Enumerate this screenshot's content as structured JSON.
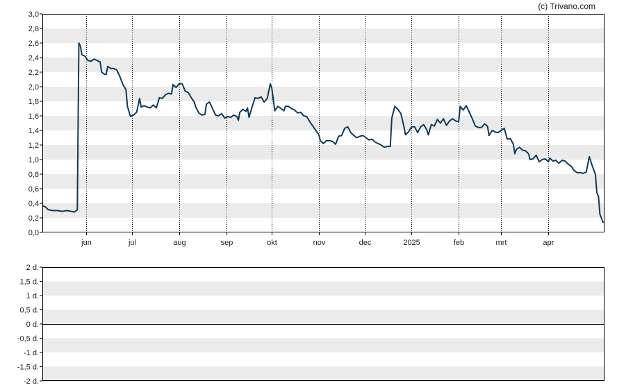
{
  "credit": "(c) Trivano.com",
  "colors": {
    "line": "#0e3a57",
    "band": "#ebebeb",
    "frame": "#000000",
    "vgrid": "#000000"
  },
  "chart_data": [
    {
      "type": "line",
      "title": "",
      "xlabel": "",
      "ylabel": "",
      "ylim": [
        0,
        3.0
      ],
      "grid": true,
      "y_ticks": [
        "0,0",
        "0,2",
        "0,4",
        "0,6",
        "0,8",
        "1,0",
        "1,2",
        "1,4",
        "1,6",
        "1,8",
        "2,0",
        "2,2",
        "2,4",
        "2,6",
        "2,8",
        "3,0"
      ],
      "x_ticks": [
        {
          "label": "jun",
          "x": "2024-06-01"
        },
        {
          "label": "jul",
          "x": "2024-07-01"
        },
        {
          "label": "aug",
          "x": "2024-08-01"
        },
        {
          "label": "sep",
          "x": "2024-09-01"
        },
        {
          "label": "okt",
          "x": "2024-10-01"
        },
        {
          "label": "nov",
          "x": "2024-11-01"
        },
        {
          "label": "dec",
          "x": "2024-12-01"
        },
        {
          "label": "2025",
          "x": "2025-01-01"
        },
        {
          "label": "feb",
          "x": "2025-02-01"
        },
        {
          "label": "mrt",
          "x": "2025-03-01"
        },
        {
          "label": "apr",
          "x": "2025-04-01"
        }
      ],
      "xlim": [
        "2024-05-03",
        "2025-05-08"
      ],
      "series": [
        {
          "points": [
            [
              "2024-05-03",
              0.37
            ],
            [
              "2024-05-05",
              0.35
            ],
            [
              "2024-05-07",
              0.31
            ],
            [
              "2024-05-10",
              0.3
            ],
            [
              "2024-05-13",
              0.3
            ],
            [
              "2024-05-16",
              0.29
            ],
            [
              "2024-05-19",
              0.3
            ],
            [
              "2024-05-22",
              0.29
            ],
            [
              "2024-05-24",
              0.28
            ],
            [
              "2024-05-26",
              0.31
            ],
            [
              "2024-05-27",
              2.6
            ],
            [
              "2024-05-28",
              2.56
            ],
            [
              "2024-05-29",
              2.44
            ],
            [
              "2024-05-31",
              2.42
            ],
            [
              "2024-06-02",
              2.36
            ],
            [
              "2024-06-04",
              2.35
            ],
            [
              "2024-06-06",
              2.38
            ],
            [
              "2024-06-08",
              2.36
            ],
            [
              "2024-06-10",
              2.34
            ],
            [
              "2024-06-11",
              2.2
            ],
            [
              "2024-06-13",
              2.17
            ],
            [
              "2024-06-14",
              2.17
            ],
            [
              "2024-06-15",
              2.28
            ],
            [
              "2024-06-17",
              2.25
            ],
            [
              "2024-06-19",
              2.25
            ],
            [
              "2024-06-21",
              2.23
            ],
            [
              "2024-06-23",
              2.14
            ],
            [
              "2024-06-25",
              2.03
            ],
            [
              "2024-06-27",
              1.96
            ],
            [
              "2024-06-28",
              1.73
            ],
            [
              "2024-06-30",
              1.59
            ],
            [
              "2024-07-02",
              1.61
            ],
            [
              "2024-07-04",
              1.65
            ],
            [
              "2024-07-06",
              1.84
            ],
            [
              "2024-07-07",
              1.72
            ],
            [
              "2024-07-09",
              1.74
            ],
            [
              "2024-07-11",
              1.72
            ],
            [
              "2024-07-13",
              1.71
            ],
            [
              "2024-07-15",
              1.75
            ],
            [
              "2024-07-17",
              1.71
            ],
            [
              "2024-07-19",
              1.85
            ],
            [
              "2024-07-21",
              1.84
            ],
            [
              "2024-07-23",
              1.89
            ],
            [
              "2024-07-25",
              1.91
            ],
            [
              "2024-07-27",
              1.9
            ],
            [
              "2024-07-28",
              2.03
            ],
            [
              "2024-07-30",
              1.99
            ],
            [
              "2024-08-01",
              2.04
            ],
            [
              "2024-08-03",
              2.04
            ],
            [
              "2024-08-05",
              1.94
            ],
            [
              "2024-08-07",
              1.92
            ],
            [
              "2024-08-09",
              1.85
            ],
            [
              "2024-08-11",
              1.79
            ],
            [
              "2024-08-12",
              1.72
            ],
            [
              "2024-08-14",
              1.64
            ],
            [
              "2024-08-16",
              1.61
            ],
            [
              "2024-08-18",
              1.62
            ],
            [
              "2024-08-19",
              1.76
            ],
            [
              "2024-08-21",
              1.79
            ],
            [
              "2024-08-23",
              1.7
            ],
            [
              "2024-08-25",
              1.61
            ],
            [
              "2024-08-27",
              1.6
            ],
            [
              "2024-08-29",
              1.63
            ],
            [
              "2024-08-31",
              1.57
            ],
            [
              "2024-09-02",
              1.59
            ],
            [
              "2024-09-04",
              1.58
            ],
            [
              "2024-09-06",
              1.61
            ],
            [
              "2024-09-08",
              1.59
            ],
            [
              "2024-09-09",
              1.54
            ],
            [
              "2024-09-10",
              1.65
            ],
            [
              "2024-09-12",
              1.69
            ],
            [
              "2024-09-14",
              1.66
            ],
            [
              "2024-09-15",
              1.71
            ],
            [
              "2024-09-16",
              1.58
            ],
            [
              "2024-09-18",
              1.72
            ],
            [
              "2024-09-20",
              1.85
            ],
            [
              "2024-09-22",
              1.84
            ],
            [
              "2024-09-24",
              1.86
            ],
            [
              "2024-09-26",
              1.79
            ],
            [
              "2024-09-28",
              1.84
            ],
            [
              "2024-09-30",
              2.04
            ],
            [
              "2024-10-01",
              1.98
            ],
            [
              "2024-10-03",
              1.67
            ],
            [
              "2024-10-05",
              1.73
            ],
            [
              "2024-10-07",
              1.7
            ],
            [
              "2024-10-09",
              1.67
            ],
            [
              "2024-10-10",
              1.73
            ],
            [
              "2024-10-12",
              1.73
            ],
            [
              "2024-10-14",
              1.7
            ],
            [
              "2024-10-16",
              1.68
            ],
            [
              "2024-10-18",
              1.64
            ],
            [
              "2024-10-20",
              1.65
            ],
            [
              "2024-10-22",
              1.6
            ],
            [
              "2024-10-24",
              1.59
            ],
            [
              "2024-10-26",
              1.52
            ],
            [
              "2024-10-28",
              1.46
            ],
            [
              "2024-10-30",
              1.4
            ],
            [
              "2024-11-01",
              1.34
            ],
            [
              "2024-11-02",
              1.26
            ],
            [
              "2024-11-04",
              1.22
            ],
            [
              "2024-11-06",
              1.26
            ],
            [
              "2024-11-08",
              1.26
            ],
            [
              "2024-11-10",
              1.25
            ],
            [
              "2024-11-12",
              1.21
            ],
            [
              "2024-11-14",
              1.32
            ],
            [
              "2024-11-16",
              1.33
            ],
            [
              "2024-11-18",
              1.43
            ],
            [
              "2024-11-20",
              1.45
            ],
            [
              "2024-11-22",
              1.37
            ],
            [
              "2024-11-24",
              1.33
            ],
            [
              "2024-11-26",
              1.3
            ],
            [
              "2024-11-28",
              1.32
            ],
            [
              "2024-11-30",
              1.33
            ],
            [
              "2024-12-02",
              1.3
            ],
            [
              "2024-12-04",
              1.27
            ],
            [
              "2024-12-06",
              1.28
            ],
            [
              "2024-12-08",
              1.24
            ],
            [
              "2024-12-10",
              1.22
            ],
            [
              "2024-12-12",
              1.2
            ],
            [
              "2024-12-14",
              1.17
            ],
            [
              "2024-12-16",
              1.18
            ],
            [
              "2024-12-18",
              1.18
            ],
            [
              "2024-12-19",
              1.57
            ],
            [
              "2024-12-21",
              1.73
            ],
            [
              "2024-12-23",
              1.69
            ],
            [
              "2024-12-25",
              1.63
            ],
            [
              "2024-12-27",
              1.45
            ],
            [
              "2024-12-28",
              1.34
            ],
            [
              "2024-12-30",
              1.38
            ],
            [
              "2025-01-01",
              1.45
            ],
            [
              "2025-01-03",
              1.45
            ],
            [
              "2025-01-05",
              1.37
            ],
            [
              "2025-01-07",
              1.45
            ],
            [
              "2025-01-09",
              1.48
            ],
            [
              "2025-01-11",
              1.41
            ],
            [
              "2025-01-12",
              1.34
            ],
            [
              "2025-01-14",
              1.48
            ],
            [
              "2025-01-16",
              1.46
            ],
            [
              "2025-01-18",
              1.55
            ],
            [
              "2025-01-20",
              1.5
            ],
            [
              "2025-01-22",
              1.56
            ],
            [
              "2025-01-24",
              1.47
            ],
            [
              "2025-01-26",
              1.53
            ],
            [
              "2025-01-28",
              1.56
            ],
            [
              "2025-01-30",
              1.53
            ],
            [
              "2025-02-01",
              1.52
            ],
            [
              "2025-02-02",
              1.73
            ],
            [
              "2025-02-04",
              1.68
            ],
            [
              "2025-02-06",
              1.74
            ],
            [
              "2025-02-08",
              1.65
            ],
            [
              "2025-02-10",
              1.56
            ],
            [
              "2025-02-12",
              1.46
            ],
            [
              "2025-02-14",
              1.44
            ],
            [
              "2025-02-16",
              1.44
            ],
            [
              "2025-02-18",
              1.49
            ],
            [
              "2025-02-20",
              1.46
            ],
            [
              "2025-02-21",
              1.33
            ],
            [
              "2025-02-23",
              1.4
            ],
            [
              "2025-02-25",
              1.38
            ],
            [
              "2025-02-27",
              1.37
            ],
            [
              "2025-03-01",
              1.4
            ],
            [
              "2025-03-03",
              1.43
            ],
            [
              "2025-03-05",
              1.28
            ],
            [
              "2025-03-07",
              1.29
            ],
            [
              "2025-03-09",
              1.21
            ],
            [
              "2025-03-10",
              1.08
            ],
            [
              "2025-03-11",
              1.14
            ],
            [
              "2025-03-13",
              1.17
            ],
            [
              "2025-03-15",
              1.13
            ],
            [
              "2025-03-17",
              1.12
            ],
            [
              "2025-03-19",
              1.08
            ],
            [
              "2025-03-20",
              1.0
            ],
            [
              "2025-03-22",
              1.01
            ],
            [
              "2025-03-24",
              1.06
            ],
            [
              "2025-03-26",
              0.97
            ],
            [
              "2025-03-28",
              1.0
            ],
            [
              "2025-03-30",
              1.01
            ],
            [
              "2025-04-01",
              0.97
            ],
            [
              "2025-04-02",
              1.02
            ],
            [
              "2025-04-04",
              0.98
            ],
            [
              "2025-04-06",
              0.99
            ],
            [
              "2025-04-08",
              0.95
            ],
            [
              "2025-04-10",
              0.99
            ],
            [
              "2025-04-12",
              0.98
            ],
            [
              "2025-04-14",
              0.94
            ],
            [
              "2025-04-16",
              0.91
            ],
            [
              "2025-04-18",
              0.85
            ],
            [
              "2025-04-20",
              0.82
            ],
            [
              "2025-04-22",
              0.82
            ],
            [
              "2025-04-24",
              0.81
            ],
            [
              "2025-04-26",
              0.83
            ],
            [
              "2025-04-28",
              1.04
            ],
            [
              "2025-04-30",
              0.91
            ],
            [
              "2025-05-02",
              0.8
            ],
            [
              "2025-05-03",
              0.54
            ],
            [
              "2025-05-04",
              0.5
            ],
            [
              "2025-05-05",
              0.25
            ],
            [
              "2025-05-07",
              0.14
            ],
            [
              "2025-05-08",
              0.14
            ]
          ]
        }
      ]
    },
    {
      "type": "bar",
      "title": "",
      "xlabel": "",
      "ylabel": "",
      "ylim": [
        -2,
        2
      ],
      "grid": true,
      "y_ticks": [
        "-2 d.",
        "-1,5 d.",
        "-1 d.",
        "-0,5 d.",
        "0 d.",
        "0,5 d.",
        "1 d.",
        "1,5 d.",
        "2 d."
      ],
      "series": []
    }
  ]
}
